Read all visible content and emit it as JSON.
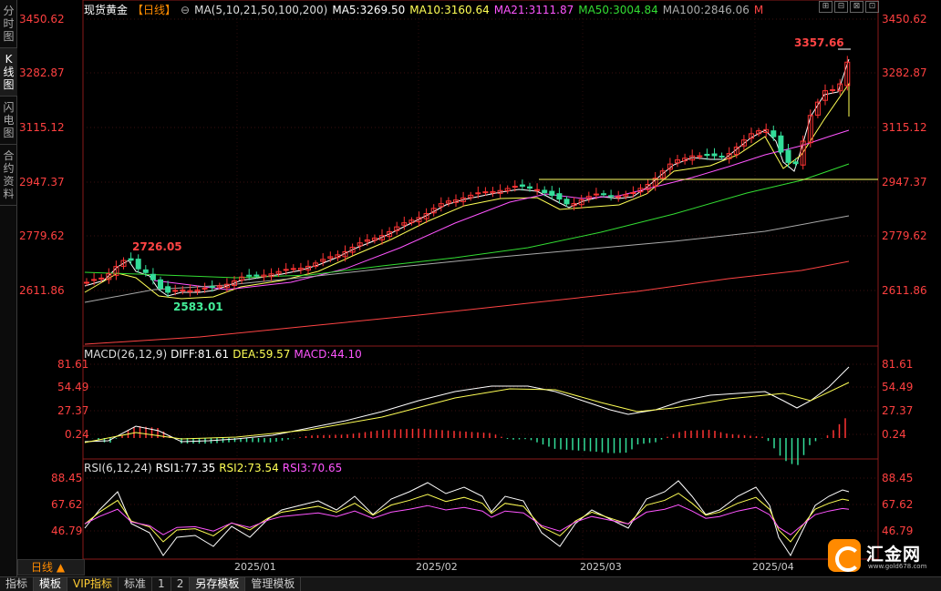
{
  "side_tabs": [
    "分时图",
    "K线图",
    "闪电图",
    "合约资料"
  ],
  "header": {
    "title": "现货黄金",
    "period": "【日线】",
    "ma_label": "MA(5,10,21,50,100,200)",
    "ma5": "MA5:3269.50",
    "ma10": "MA10:3160.64",
    "ma21": "MA21:3111.87",
    "ma50": "MA50:3004.84",
    "ma100": "MA100:2846.06",
    "ma200": "M"
  },
  "window_buttons": [
    "⊞",
    "⊟",
    "⊠",
    "⊡"
  ],
  "main_axis_labels": [
    "3450.62",
    "3282.87",
    "3115.12",
    "2947.37",
    "2779.62",
    "2611.86"
  ],
  "annotations": {
    "high": "3357.66",
    "mid": "2726.05",
    "low": "2583.01"
  },
  "macd": {
    "label": "MACD(26,12,9)",
    "diff": "DIFF:81.61",
    "dea": "DEA:59.57",
    "macd": "MACD:44.10",
    "axis_labels": [
      "81.61",
      "54.49",
      "27.37",
      "0.24"
    ]
  },
  "rsi": {
    "label": "RSI(6,12,24)",
    "rsi1": "RSI1:77.35",
    "rsi2": "RSI2:73.54",
    "rsi3": "RSI3:70.65",
    "axis_labels": [
      "88.45",
      "67.62",
      "46.79"
    ]
  },
  "x_axis_labels": [
    "2025/01",
    "2025/02",
    "2025/03",
    "2025/04"
  ],
  "period_button": "日线 ▲",
  "bottom_tabs": [
    "指标",
    "模板",
    "VIP指标",
    "标准",
    "1",
    "2",
    "另存模板",
    "管理模板"
  ],
  "logo": {
    "name": "汇金网",
    "url": "www.gold678.com"
  },
  "colors": {
    "up": "#ff3333",
    "down": "#33dd99",
    "ma5": "#ffffff",
    "ma10": "#ffff55",
    "ma21": "#ff55ff",
    "ma50": "#33dd33",
    "ma100": "#aaaaaa",
    "ma200": "#ff4444",
    "axis_text": "#ff4040"
  }
}
